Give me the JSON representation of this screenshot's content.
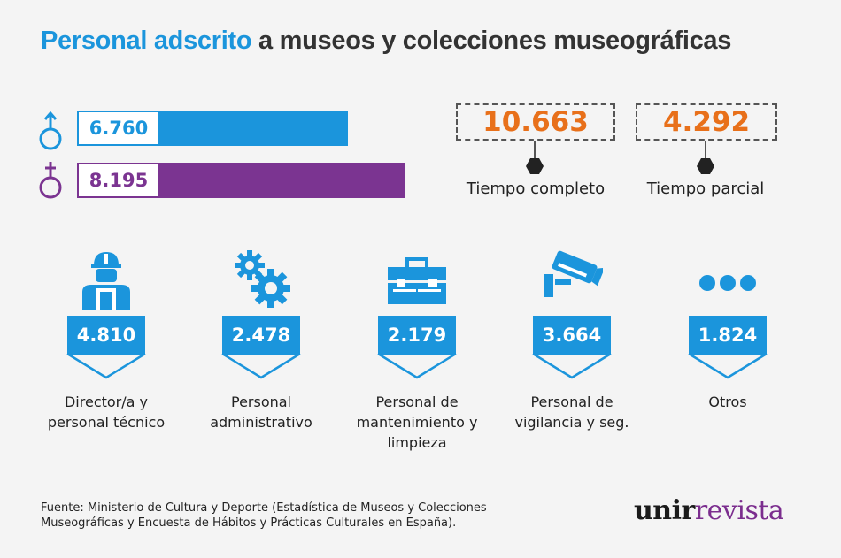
{
  "title": {
    "highlight": "Personal adscrito",
    "rest": "a museos y colecciones museográficas"
  },
  "colors": {
    "blue": "#1b95dc",
    "purple": "#7b3491",
    "orange": "#e8701a"
  },
  "gender": [
    {
      "icon": "male-symbol-icon",
      "value": "6.760",
      "color": "#1b95dc"
    },
    {
      "icon": "female-symbol-icon",
      "value": "8.195",
      "color": "#7b3491"
    }
  ],
  "time": [
    {
      "value": "10.663",
      "label": "Tiempo completo"
    },
    {
      "value": "4.292",
      "label": "Tiempo parcial"
    }
  ],
  "categories": [
    {
      "icon": "worker-icon",
      "value": "4.810",
      "label_lines": [
        "Director/a y",
        "personal técnico"
      ]
    },
    {
      "icon": "gears-icon",
      "value": "2.478",
      "label_lines": [
        "Personal",
        "administrativo"
      ]
    },
    {
      "icon": "toolbox-icon",
      "value": "2.179",
      "label_lines": [
        "Personal de",
        "mantenimiento y",
        "limpieza"
      ]
    },
    {
      "icon": "security-camera-icon",
      "value": "3.664",
      "label_lines": [
        "Personal de",
        "vigilancia y seg."
      ]
    },
    {
      "icon": "ellipsis-icon",
      "value": "1.824",
      "label_lines": [
        "Otros"
      ]
    }
  ],
  "source": {
    "line1": "Fuente: Ministerio de Cultura y Deporte (Estadística de Museos y Colecciones",
    "line2": "Museográficas y Encuesta de Hábitos y Prácticas Culturales en España)."
  },
  "logo": {
    "part1": "unir",
    "part2": "revista"
  },
  "chart_data": [
    {
      "type": "bar",
      "categories": [
        "♂",
        "♀"
      ],
      "values": [
        6760,
        8195
      ],
      "title": "",
      "xlabel": "",
      "ylabel": ""
    },
    {
      "type": "table",
      "categories": [
        "Tiempo completo",
        "Tiempo parcial"
      ],
      "values": [
        10663,
        4292
      ]
    },
    {
      "type": "table",
      "categories": [
        "Director/a y personal técnico",
        "Personal administrativo",
        "Personal de mantenimiento y limpieza",
        "Personal de vigilancia y seg.",
        "Otros"
      ],
      "values": [
        4810,
        2478,
        2179,
        3664,
        1824
      ]
    }
  ]
}
